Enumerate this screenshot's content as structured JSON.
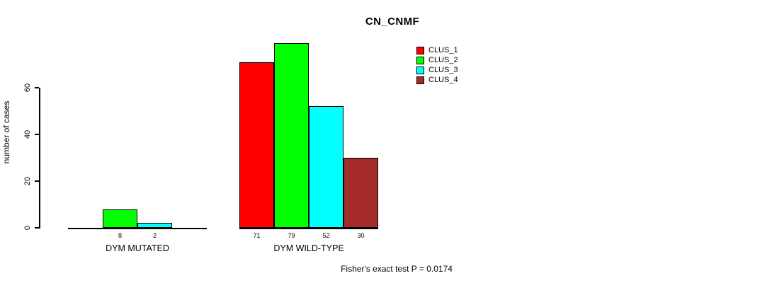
{
  "chart_data": {
    "type": "bar",
    "title": "CN_CNMF",
    "ylabel": "number of cases",
    "xlabel": "",
    "categories": [
      "DYM MUTATED",
      "DYM WILD-TYPE"
    ],
    "series": [
      {
        "name": "CLUS_1",
        "color": "#ff0000",
        "values": [
          0,
          71
        ]
      },
      {
        "name": "CLUS_2",
        "color": "#00ff00",
        "values": [
          8,
          79
        ]
      },
      {
        "name": "CLUS_3",
        "color": "#00ffff",
        "values": [
          2,
          52
        ]
      },
      {
        "name": "CLUS_4",
        "color": "#a52a2a",
        "values": [
          0,
          30
        ]
      }
    ],
    "yticks": [
      0,
      20,
      40,
      60
    ],
    "ylim": [
      0,
      80
    ],
    "grid": false,
    "legend_position": "top-right",
    "value_labels": "shown under bars, zeros omitted",
    "annotation": "Fisher's exact test P = 0.0174"
  }
}
